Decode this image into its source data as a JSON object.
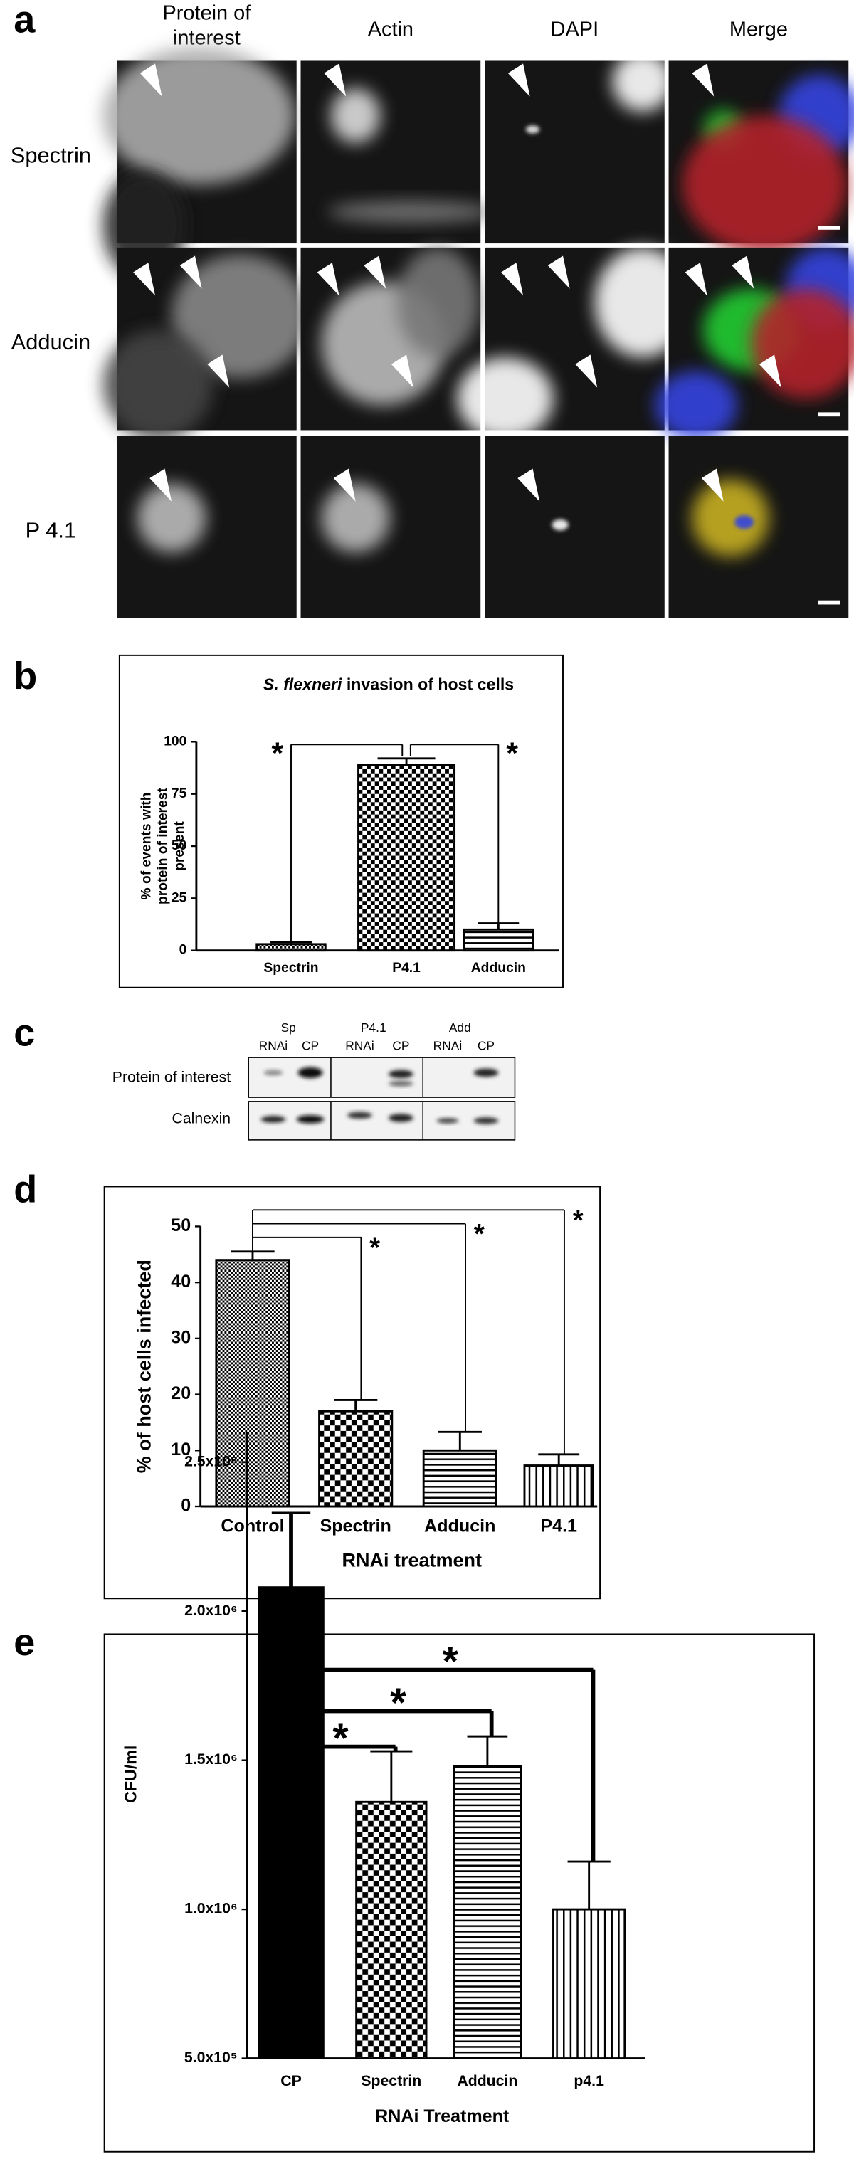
{
  "panel_labels": [
    "a",
    "b",
    "c",
    "d",
    "e"
  ],
  "panel_a": {
    "column_headers": [
      [
        "Protein of",
        "interest"
      ],
      [
        "Actin"
      ],
      [
        "DAPI"
      ],
      [
        "Merge"
      ]
    ],
    "row_labels": [
      "Spectrin",
      "Adducin",
      "P 4.1"
    ]
  },
  "panel_c": {
    "group_labels": [
      "Sp",
      "P4.1",
      "Add"
    ],
    "lane_labels": [
      "RNAi",
      "CP",
      "RNAi",
      "CP",
      "RNAi",
      "CP"
    ],
    "row_labels": [
      "Protein of interest",
      "Calnexin"
    ]
  },
  "chart_data": [
    {
      "type": "bar",
      "title": [
        "S. flexneri",
        "invasion of host cells"
      ],
      "ylabel": [
        "% of events with",
        "protein of interest",
        "present"
      ],
      "categories": [
        "Spectrin",
        "P4.1",
        "Adducin"
      ],
      "values": [
        3,
        89,
        10
      ],
      "errors": [
        1,
        3,
        3
      ],
      "ylim": [
        0,
        100
      ],
      "yticks": [
        0,
        25,
        50,
        75,
        100
      ],
      "annotations": [
        "*",
        "*"
      ]
    },
    {
      "type": "bar",
      "ylabel": "% of host cells infected",
      "xlabel": "RNAi treatment",
      "categories": [
        "Control",
        "Spectrin",
        "Adducin",
        "P4.1"
      ],
      "values": [
        44,
        17,
        10,
        7.3
      ],
      "errors": [
        1.5,
        2,
        3.3,
        2
      ],
      "ylim": [
        0,
        50
      ],
      "yticks": [
        0,
        10,
        20,
        30,
        40,
        50
      ],
      "annotations": [
        "*",
        "*",
        "*"
      ]
    },
    {
      "type": "bar",
      "ylabel": "CFU/ml",
      "xlabel": "RNAi Treatment",
      "categories": [
        "CP",
        "Spectrin",
        "Adducin",
        "p4.1"
      ],
      "values": [
        2080000,
        1360000,
        1480000,
        1000000
      ],
      "errors": [
        250000,
        170000,
        100000,
        160000
      ],
      "ylim": [
        500000,
        2600000
      ],
      "yticks": [
        {
          "value": 500000,
          "label": "5.0x10⁵"
        },
        {
          "value": 1000000,
          "label": "1.0x10⁶"
        },
        {
          "value": 1500000,
          "label": "1.5x10⁶"
        },
        {
          "value": 2000000,
          "label": "2.0x10⁶"
        },
        {
          "value": 2500000,
          "label": "2.5x10⁶"
        }
      ],
      "annotations": [
        "*",
        "*",
        "*"
      ]
    }
  ]
}
